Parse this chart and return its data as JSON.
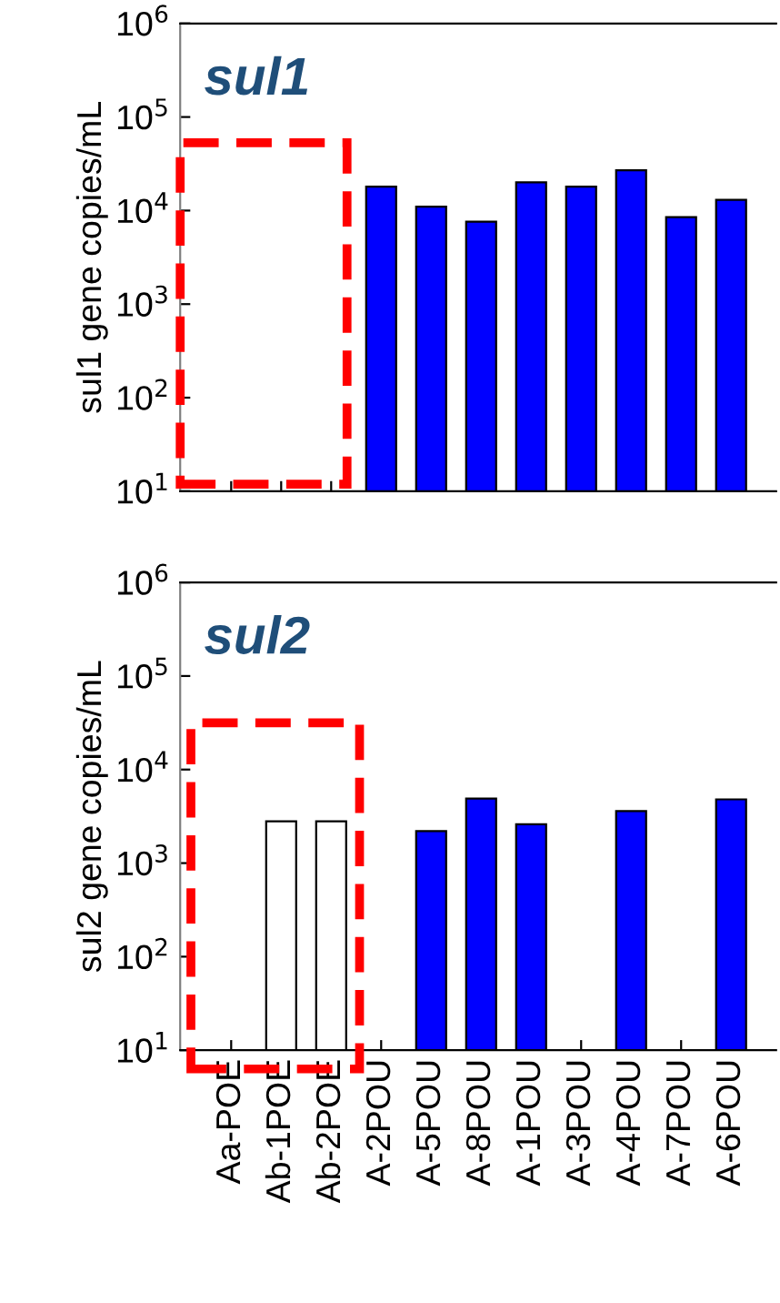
{
  "chart_data": [
    {
      "type": "bar",
      "title": "sul1",
      "ylabel": "sul1 gene copies/mL",
      "categories": [
        null,
        null,
        null,
        null,
        null,
        null,
        null,
        null,
        null,
        null,
        null
      ],
      "values": [
        null,
        null,
        null,
        18000,
        11000,
        7600,
        20000,
        18000,
        27000,
        8500,
        13000
      ],
      "colors": [
        "#0000ff",
        "#0000ff",
        "#0000ff",
        "#0000ff",
        "#0000ff",
        "#0000ff",
        "#0000ff",
        "#0000ff",
        "#0000ff",
        "#0000ff",
        "#0000ff"
      ],
      "log": true,
      "ylim": [
        10,
        1000000
      ],
      "yticks": [
        {
          "value": 10,
          "label": "10$^{1}$"
        },
        {
          "value": 100,
          "label": "10$^{2}$"
        },
        {
          "value": 1000,
          "label": "10$^{3}$"
        },
        {
          "value": 10000,
          "label": "10$^{4}$"
        },
        {
          "value": 100000,
          "label": "10$^{5}$"
        },
        {
          "value": 1000000,
          "label": "10$^{6}$"
        }
      ],
      "tick_labels": "y",
      "grid": false,
      "legend": false
    },
    {
      "type": "bar",
      "title": "sul2",
      "ylabel": "sul2 gene copies/mL",
      "categories": [
        "Aa-POE",
        "Ab-1POE",
        "Ab-2POE",
        "A-2POU",
        "A-5POU",
        "A-8POU",
        "A-1POU",
        "A-3POU",
        "A-4POU",
        "A-7POU",
        "A-6POU"
      ],
      "values": [
        null,
        2800,
        2800,
        null,
        2200,
        4900,
        2600,
        null,
        3600,
        null,
        4800
      ],
      "colors": [
        "#ffffff",
        "#ffffff",
        "#ffffff",
        "#0000ff",
        "#0000ff",
        "#0000ff",
        "#0000ff",
        "#0000ff",
        "#0000ff",
        "#0000ff",
        "#0000ff"
      ],
      "log": true,
      "ylim": [
        10,
        1000000
      ],
      "yticks": [
        {
          "value": 10,
          "label": "10$^{1}$"
        },
        {
          "value": 100,
          "label": "10$^{2}$"
        },
        {
          "value": 1000,
          "label": "10$^{3}$"
        },
        {
          "value": 10000,
          "label": "10$^{4}$"
        },
        {
          "value": 100000,
          "label": "10$^{5}$"
        },
        {
          "value": 1000000,
          "label": "10$^{6}$"
        }
      ],
      "grid": false,
      "legend": false
    }
  ]
}
